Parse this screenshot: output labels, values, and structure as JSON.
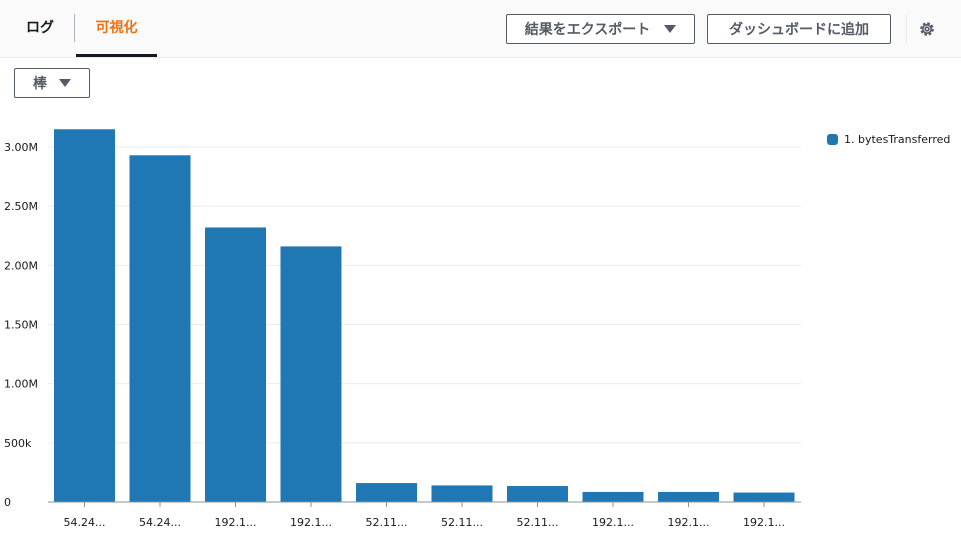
{
  "tabs": [
    {
      "label": "ログ"
    },
    {
      "label": "可視化"
    }
  ],
  "toolbar": {
    "export_label": "結果をエクスポート",
    "dashboard_label": "ダッシュボードに追加"
  },
  "chart_type_select": {
    "value": "棒"
  },
  "icons": {
    "settings": "gear-icon",
    "dropdown": "caret-down-icon"
  },
  "colors": {
    "accent": "#ec7211",
    "bar": "#1f78b4"
  },
  "chart_data": {
    "type": "bar",
    "categories": [
      "54.24...",
      "54.24...",
      "192.1...",
      "192.1...",
      "52.11...",
      "52.11...",
      "52.11...",
      "192.1...",
      "192.1...",
      "192.1..."
    ],
    "series": [
      {
        "name": "1. bytesTransferred",
        "values": [
          3150000,
          2930000,
          2320000,
          2160000,
          160000,
          140000,
          135000,
          85000,
          85000,
          80000
        ]
      }
    ],
    "ylim": [
      0,
      3250000
    ],
    "yticks": [
      0,
      500000,
      1000000,
      1500000,
      2000000,
      2500000,
      3000000
    ],
    "ytick_labels": [
      "0",
      "500k",
      "1.00M",
      "1.50M",
      "2.00M",
      "2.50M",
      "3.00M"
    ],
    "grid": true,
    "legend_position": "top-right"
  }
}
